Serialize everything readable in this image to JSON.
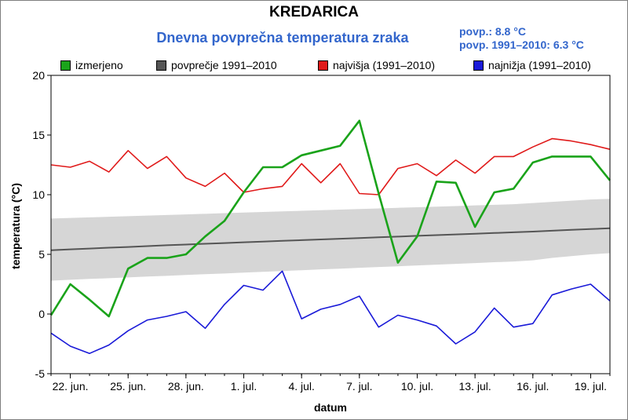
{
  "chart_data": {
    "type": "line",
    "title": "KREDARICA",
    "subtitle": "Dnevna povprečna temperatura zraka",
    "stats": {
      "mean": "povp.: 8.8 °C",
      "mean_1991_2010": "povp. 1991–2010: 6.3 °C"
    },
    "xlabel": "datum",
    "ylabel": "temperatura (°C)",
    "ylim": [
      -5,
      20
    ],
    "yticks": [
      "-5",
      "0",
      "5",
      "10",
      "15",
      "20"
    ],
    "xticks": [
      {
        "label": "22. jun.",
        "day": 1
      },
      {
        "label": "25. jun.",
        "day": 4
      },
      {
        "label": "28. jun.",
        "day": 7
      },
      {
        "label": "1. jul.",
        "day": 10
      },
      {
        "label": "4. jul.",
        "day": 13
      },
      {
        "label": "7. jul.",
        "day": 16
      },
      {
        "label": "10. jul.",
        "day": 19
      },
      {
        "label": "13. jul.",
        "day": 22
      },
      {
        "label": "16. jul.",
        "day": 25
      },
      {
        "label": "19. jul.",
        "day": 28
      }
    ],
    "x": [
      0,
      1,
      2,
      3,
      4,
      5,
      6,
      7,
      8,
      9,
      10,
      11,
      12,
      13,
      14,
      15,
      16,
      17,
      18,
      19,
      20,
      21,
      22,
      23,
      24,
      25,
      26,
      27,
      28,
      29
    ],
    "legend_position": "top",
    "grid": false,
    "series": [
      {
        "name": "izmerjeno",
        "color": "#1aa31a",
        "values": [
          -0.1,
          2.5,
          1.2,
          -0.2,
          3.8,
          4.7,
          4.7,
          5.0,
          6.5,
          7.8,
          10.2,
          12.3,
          12.3,
          13.3,
          13.7,
          14.1,
          16.2,
          10.1,
          4.3,
          6.5,
          11.1,
          11.0,
          7.3,
          10.2,
          10.5,
          12.7,
          13.2,
          13.2,
          13.2,
          11.2
        ]
      },
      {
        "name": "povprečje 1991–2010",
        "color": "#555555",
        "values": [
          5.35,
          5.42,
          5.49,
          5.56,
          5.62,
          5.69,
          5.76,
          5.82,
          5.89,
          5.95,
          6.01,
          6.07,
          6.13,
          6.19,
          6.25,
          6.31,
          6.37,
          6.43,
          6.49,
          6.55,
          6.61,
          6.67,
          6.73,
          6.79,
          6.85,
          6.91,
          6.98,
          7.05,
          7.12,
          7.19
        ]
      },
      {
        "name": "najvišja (1991–2010)",
        "color": "#e01a1a",
        "values": [
          12.5,
          12.3,
          12.8,
          11.9,
          13.7,
          12.2,
          13.2,
          11.4,
          10.7,
          11.8,
          10.2,
          10.5,
          10.7,
          12.6,
          11.0,
          12.6,
          10.1,
          10.0,
          12.2,
          12.6,
          11.6,
          12.9,
          11.8,
          13.2,
          13.2,
          14.0,
          14.7,
          14.5,
          14.2,
          13.8
        ]
      },
      {
        "name": "najnižja (1991–2010)",
        "color": "#1a1ad8",
        "values": [
          -1.6,
          -2.7,
          -3.3,
          -2.6,
          -1.4,
          -0.5,
          -0.2,
          0.2,
          -1.2,
          0.8,
          2.4,
          2.0,
          3.6,
          -0.4,
          0.4,
          0.8,
          1.5,
          -1.1,
          -0.1,
          -0.5,
          -1.0,
          -2.5,
          -1.5,
          0.5,
          -1.1,
          -0.8,
          1.6,
          2.1,
          2.5,
          1.1
        ]
      }
    ],
    "band": {
      "color": "#d6d6d6",
      "lower": [
        2.8,
        2.87,
        2.94,
        3.0,
        3.07,
        3.14,
        3.2,
        3.27,
        3.34,
        3.4,
        3.47,
        3.54,
        3.6,
        3.67,
        3.74,
        3.8,
        3.87,
        3.94,
        4.0,
        4.07,
        4.14,
        4.2,
        4.27,
        4.34,
        4.4,
        4.5,
        4.7,
        4.85,
        5.0,
        5.1
      ],
      "upper": [
        8.0,
        8.05,
        8.1,
        8.15,
        8.2,
        8.25,
        8.3,
        8.35,
        8.4,
        8.45,
        8.5,
        8.55,
        8.6,
        8.65,
        8.7,
        8.75,
        8.8,
        8.85,
        8.9,
        8.95,
        9.0,
        9.05,
        9.1,
        9.15,
        9.2,
        9.3,
        9.4,
        9.5,
        9.6,
        9.65
      ]
    }
  }
}
